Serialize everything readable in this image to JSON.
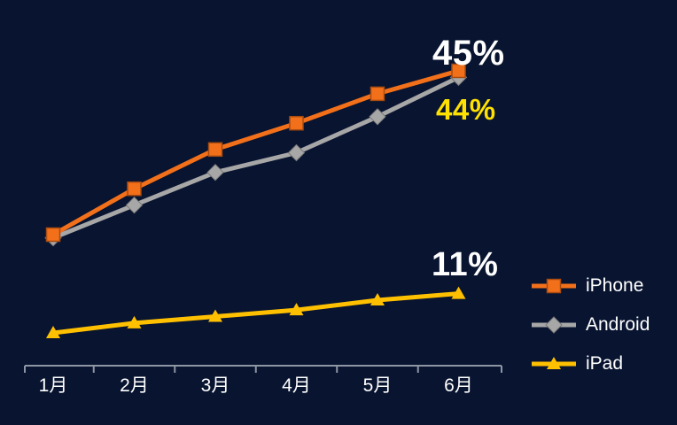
{
  "chart_data": {
    "type": "line",
    "categories": [
      "1月",
      "2月",
      "3月",
      "4月",
      "5月",
      "6月"
    ],
    "series": [
      {
        "name": "iPhone",
        "color": "#f3701b",
        "marker": "square",
        "values": [
          20,
          27,
          33,
          37,
          41.5,
          45
        ]
      },
      {
        "name": "Android",
        "color": "#a7a7a7",
        "marker": "diamond",
        "values": [
          19.5,
          24.5,
          29.5,
          32.5,
          38,
          44
        ]
      },
      {
        "name": "iPad",
        "color": "#ffc000",
        "marker": "triangle",
        "values": [
          5,
          6.5,
          7.5,
          8.5,
          10,
          11
        ]
      }
    ],
    "ylim": [
      0,
      50
    ],
    "grid": false,
    "legend_position": "right",
    "annotations": [
      {
        "text": "45%",
        "series": "iPhone",
        "color": "#ffffff"
      },
      {
        "text": "44%",
        "series": "Android",
        "color": "#ffe100"
      },
      {
        "text": "11%",
        "series": "iPad",
        "color": "#ffffff"
      }
    ]
  },
  "colors": {
    "background": "#081430",
    "axis": "#8e95a3",
    "tick_label": "#ffffff"
  }
}
